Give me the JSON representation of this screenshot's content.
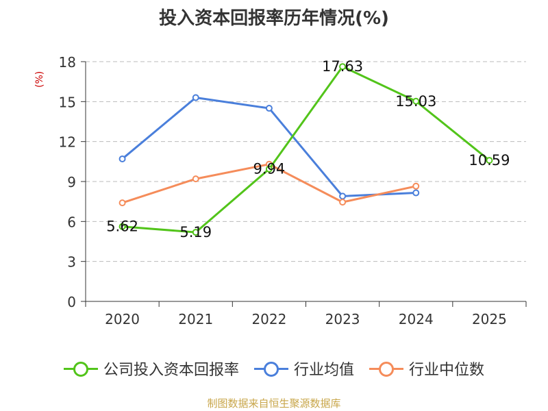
{
  "title": "投入资本回报率历年情况(%)",
  "unit_label": "(%)",
  "source": "制图数据来自恒生聚源数据库",
  "chart_data": {
    "type": "line",
    "categories": [
      "2020",
      "2021",
      "2022",
      "2023",
      "2024",
      "2025"
    ],
    "ylim": [
      0,
      18
    ],
    "yticks": [
      0,
      3,
      6,
      9,
      12,
      15,
      18
    ],
    "grid": true,
    "legend_position": "bottom",
    "series": [
      {
        "name": "公司投入资本回报率",
        "color": "#52c41a",
        "values": [
          5.62,
          5.19,
          9.94,
          17.63,
          15.03,
          10.59
        ],
        "labels": [
          "5.62",
          "5.19",
          "9.94",
          "17.63",
          "15.03",
          "10.59"
        ]
      },
      {
        "name": "行业均值",
        "color": "#4a7fdb",
        "values": [
          10.7,
          15.3,
          14.5,
          7.9,
          8.15,
          null
        ]
      },
      {
        "name": "行业中位数",
        "color": "#f58c5a",
        "values": [
          7.4,
          9.2,
          10.3,
          7.45,
          8.65,
          null
        ]
      }
    ]
  }
}
